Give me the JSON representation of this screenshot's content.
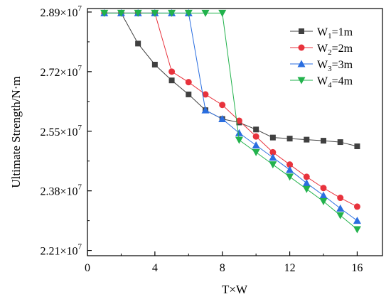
{
  "chart_data": {
    "type": "line",
    "xlabel": "T×W",
    "ylabel": "Ultimate Strength/N·m",
    "xlim": [
      0,
      17.5
    ],
    "ylim": [
      2.195,
      2.9
    ],
    "xticks": [
      0,
      4,
      8,
      12,
      16
    ],
    "xtick_labels": [
      "0",
      "4",
      "8",
      "12",
      "16"
    ],
    "yticks": [
      2.21,
      2.38,
      2.55,
      2.72,
      2.89
    ],
    "ytick_labels": [
      {
        "mantissa": "2.21×10",
        "exp": "7"
      },
      {
        "mantissa": "2.38×10",
        "exp": "7"
      },
      {
        "mantissa": "2.55×10",
        "exp": "7"
      },
      {
        "mantissa": "2.72×10",
        "exp": "7"
      },
      {
        "mantissa": "2.89×10",
        "exp": "7"
      }
    ],
    "y_scale_note": "values in units of 10^7 N·m",
    "legend_position": "top-right",
    "grid": false,
    "x": [
      1,
      2,
      3,
      4,
      5,
      6,
      7,
      8,
      9,
      10,
      11,
      12,
      13,
      14,
      15,
      16
    ],
    "series": [
      {
        "legend": {
          "main": "W",
          "sub": "1",
          "tail": "=1m"
        },
        "color": "#404040",
        "marker": "square",
        "values": [
          2.887,
          2.887,
          2.8,
          2.74,
          2.695,
          2.655,
          2.61,
          2.585,
          2.575,
          2.555,
          2.532,
          2.529,
          2.526,
          2.523,
          2.519,
          2.507
        ]
      },
      {
        "legend": {
          "main": "W",
          "sub": "2",
          "tail": "=2m"
        },
        "color": "#e8323c",
        "marker": "circle",
        "values": [
          2.887,
          2.887,
          2.887,
          2.887,
          2.72,
          2.69,
          2.655,
          2.625,
          2.58,
          2.535,
          2.49,
          2.455,
          2.42,
          2.388,
          2.36,
          2.335
        ]
      },
      {
        "legend": {
          "main": "W",
          "sub": "3",
          "tail": "=3m"
        },
        "color": "#2a6ee0",
        "marker": "triangle-up",
        "values": [
          2.887,
          2.887,
          2.887,
          2.887,
          2.887,
          2.887,
          2.61,
          2.585,
          2.545,
          2.51,
          2.475,
          2.44,
          2.402,
          2.367,
          2.33,
          2.295
        ]
      },
      {
        "legend": {
          "main": "W",
          "sub": "4",
          "tail": "=4m"
        },
        "color": "#22b24c",
        "marker": "triangle-down",
        "values": [
          2.887,
          2.887,
          2.887,
          2.887,
          2.887,
          2.887,
          2.887,
          2.887,
          2.525,
          2.49,
          2.455,
          2.42,
          2.385,
          2.35,
          2.31,
          2.27
        ]
      }
    ]
  }
}
